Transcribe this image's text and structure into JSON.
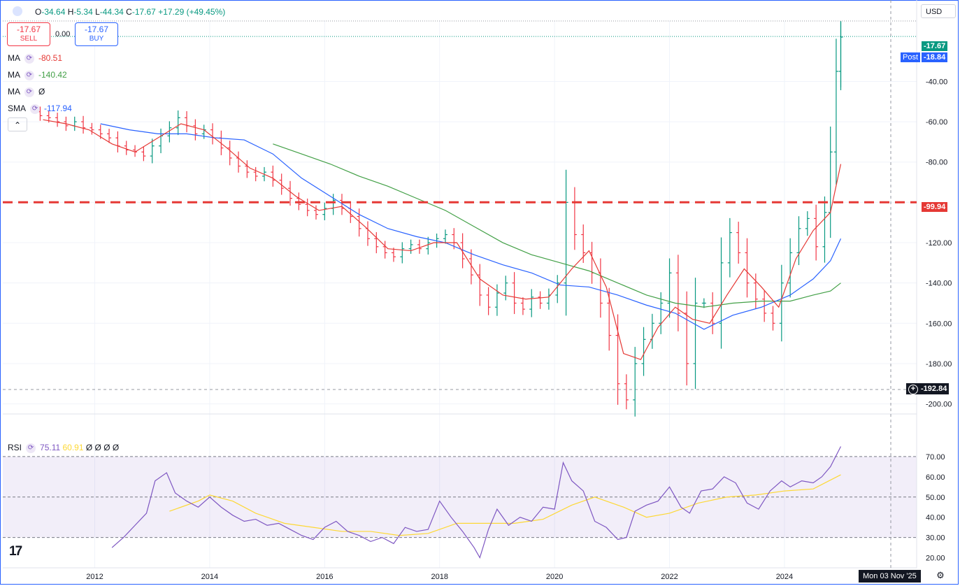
{
  "header": {
    "o_label": "O",
    "o": "-34.64",
    "h_label": "H",
    "h": "-5.34",
    "l_label": "L",
    "l": "-44.34",
    "c_label": "C",
    "c": "-17.67",
    "change": "+17.29 (+49.45%)",
    "currency": "USD"
  },
  "trade": {
    "sell_price": "-17.67",
    "sell_label": "SELL",
    "spread": "0.00",
    "buy_price": "-17.67",
    "buy_label": "BUY"
  },
  "indicators": [
    {
      "name": "MA",
      "value": "-80.51",
      "color": "#e53935"
    },
    {
      "name": "MA",
      "value": "-140.42",
      "color": "#43a047"
    },
    {
      "name": "MA",
      "value": "Ø",
      "color": "#131722"
    },
    {
      "name": "SMA",
      "value": "-117.94",
      "color": "#2962ff"
    }
  ],
  "rsi": {
    "name": "RSI",
    "value": "75.11",
    "ma_value": "60.91",
    "extra": "Ø Ø Ø Ø"
  },
  "price_tags": {
    "last": "-17.67",
    "post_label": "Post",
    "post": "-18.84",
    "level": "-99.94",
    "cursor": "-192.84"
  },
  "time_tag": "Mon 03 Nov '25",
  "logo_text": "17",
  "colors": {
    "up": "#089981",
    "down": "#f23645",
    "ma_fast": "#e53935",
    "ma_slow": "#43a047",
    "sma": "#2962ff",
    "rsi": "#7e57c2",
    "rsi_ma": "#fdd835",
    "level": "#e53935"
  },
  "chart_data": {
    "type": "bar",
    "x_ticks": [
      "2012",
      "2014",
      "2016",
      "2018",
      "2020",
      "2022",
      "2024"
    ],
    "y_ticks": [
      -40,
      -60,
      -80,
      -100,
      -120,
      -140,
      -160,
      -180,
      -200
    ],
    "y_tick_labels": [
      "-40.00",
      "-60.00",
      "-80.00",
      "-100.00",
      "-120.00",
      "-140.00",
      "-160.00",
      "-180.00",
      "-200.00"
    ],
    "ylim": [
      -205,
      -10
    ],
    "xlim": [
      2010.4,
      2026.3
    ],
    "horizontal_level": -99.94,
    "series_close": [
      [
        2011.05,
        -57
      ],
      [
        2011.2,
        -58
      ],
      [
        2011.35,
        -60
      ],
      [
        2011.5,
        -62
      ],
      [
        2011.65,
        -60
      ],
      [
        2011.8,
        -63
      ],
      [
        2011.95,
        -64
      ],
      [
        2012.1,
        -66
      ],
      [
        2012.25,
        -68
      ],
      [
        2012.4,
        -72
      ],
      [
        2012.55,
        -74
      ],
      [
        2012.7,
        -75
      ],
      [
        2012.85,
        -77
      ],
      [
        2013.0,
        -72
      ],
      [
        2013.15,
        -67
      ],
      [
        2013.3,
        -63
      ],
      [
        2013.45,
        -58
      ],
      [
        2013.6,
        -62
      ],
      [
        2013.75,
        -66
      ],
      [
        2013.9,
        -64
      ],
      [
        2014.05,
        -68
      ],
      [
        2014.2,
        -73
      ],
      [
        2014.35,
        -78
      ],
      [
        2014.5,
        -82
      ],
      [
        2014.65,
        -85
      ],
      [
        2014.8,
        -87
      ],
      [
        2014.95,
        -85
      ],
      [
        2015.1,
        -89
      ],
      [
        2015.25,
        -93
      ],
      [
        2015.4,
        -98
      ],
      [
        2015.55,
        -101
      ],
      [
        2015.7,
        -104
      ],
      [
        2015.85,
        -106
      ],
      [
        2016.0,
        -103
      ],
      [
        2016.15,
        -99
      ],
      [
        2016.3,
        -103
      ],
      [
        2016.45,
        -107
      ],
      [
        2016.6,
        -113
      ],
      [
        2016.75,
        -118
      ],
      [
        2016.9,
        -122
      ],
      [
        2017.05,
        -125
      ],
      [
        2017.2,
        -127
      ],
      [
        2017.35,
        -123
      ],
      [
        2017.5,
        -121
      ],
      [
        2017.65,
        -123
      ],
      [
        2017.8,
        -120
      ],
      [
        2017.95,
        -118
      ],
      [
        2018.1,
        -116
      ],
      [
        2018.25,
        -120
      ],
      [
        2018.4,
        -128
      ],
      [
        2018.55,
        -136
      ],
      [
        2018.7,
        -146
      ],
      [
        2018.85,
        -152
      ],
      [
        2019.0,
        -145
      ],
      [
        2019.15,
        -140
      ],
      [
        2019.3,
        -150
      ],
      [
        2019.45,
        -153
      ],
      [
        2019.6,
        -147
      ],
      [
        2019.75,
        -150
      ],
      [
        2019.9,
        -146
      ],
      [
        2020.05,
        -140
      ],
      [
        2020.2,
        -100
      ],
      [
        2020.35,
        -116
      ],
      [
        2020.5,
        -125
      ],
      [
        2020.65,
        -135
      ],
      [
        2020.8,
        -150
      ],
      [
        2020.95,
        -166
      ],
      [
        2021.1,
        -190
      ],
      [
        2021.25,
        -198
      ],
      [
        2021.4,
        -180
      ],
      [
        2021.55,
        -168
      ],
      [
        2021.7,
        -160
      ],
      [
        2021.85,
        -150
      ],
      [
        2022.0,
        -135
      ],
      [
        2022.15,
        -155
      ],
      [
        2022.3,
        -180
      ],
      [
        2022.45,
        -150
      ],
      [
        2022.6,
        -150
      ],
      [
        2022.75,
        -160
      ],
      [
        2022.9,
        -130
      ],
      [
        2023.05,
        -115
      ],
      [
        2023.2,
        -125
      ],
      [
        2023.35,
        -140
      ],
      [
        2023.5,
        -148
      ],
      [
        2023.65,
        -155
      ],
      [
        2023.8,
        -160
      ],
      [
        2023.95,
        -140
      ],
      [
        2024.1,
        -125
      ],
      [
        2024.25,
        -113
      ],
      [
        2024.4,
        -108
      ],
      [
        2024.55,
        -122
      ],
      [
        2024.7,
        -105
      ],
      [
        2024.8,
        -75
      ],
      [
        2024.9,
        -35
      ],
      [
        2024.98,
        -18
      ]
    ],
    "ma_fast": [
      [
        2011.1,
        -59
      ],
      [
        2011.5,
        -61
      ],
      [
        2011.9,
        -64
      ],
      [
        2012.3,
        -71
      ],
      [
        2012.7,
        -75
      ],
      [
        2013.1,
        -68
      ],
      [
        2013.5,
        -61
      ],
      [
        2013.9,
        -64
      ],
      [
        2014.3,
        -73
      ],
      [
        2014.7,
        -83
      ],
      [
        2015.1,
        -88
      ],
      [
        2015.5,
        -97
      ],
      [
        2015.9,
        -104
      ],
      [
        2016.3,
        -102
      ],
      [
        2016.7,
        -112
      ],
      [
        2017.1,
        -123
      ],
      [
        2017.5,
        -124
      ],
      [
        2017.9,
        -120
      ],
      [
        2018.3,
        -120
      ],
      [
        2018.7,
        -138
      ],
      [
        2019.1,
        -146
      ],
      [
        2019.5,
        -148
      ],
      [
        2019.9,
        -147
      ],
      [
        2020.3,
        -133
      ],
      [
        2020.6,
        -124
      ],
      [
        2020.9,
        -142
      ],
      [
        2021.2,
        -175
      ],
      [
        2021.5,
        -178
      ],
      [
        2021.8,
        -162
      ],
      [
        2022.1,
        -152
      ],
      [
        2022.4,
        -158
      ],
      [
        2022.7,
        -160
      ],
      [
        2023.0,
        -146
      ],
      [
        2023.3,
        -133
      ],
      [
        2023.6,
        -142
      ],
      [
        2023.9,
        -152
      ],
      [
        2024.2,
        -128
      ],
      [
        2024.5,
        -114
      ],
      [
        2024.8,
        -105
      ],
      [
        2024.98,
        -81
      ]
    ],
    "ma_slow": [
      [
        2015.1,
        -71
      ],
      [
        2015.6,
        -76
      ],
      [
        2016.1,
        -81
      ],
      [
        2016.6,
        -87
      ],
      [
        2017.1,
        -92
      ],
      [
        2017.6,
        -98
      ],
      [
        2018.1,
        -104
      ],
      [
        2018.6,
        -112
      ],
      [
        2019.1,
        -120
      ],
      [
        2019.6,
        -126
      ],
      [
        2020.1,
        -130
      ],
      [
        2020.6,
        -134
      ],
      [
        2021.1,
        -140
      ],
      [
        2021.6,
        -146
      ],
      [
        2022.1,
        -150
      ],
      [
        2022.6,
        -152
      ],
      [
        2023.1,
        -150
      ],
      [
        2023.6,
        -149
      ],
      [
        2024.1,
        -149
      ],
      [
        2024.5,
        -146
      ],
      [
        2024.8,
        -144
      ],
      [
        2024.98,
        -140
      ]
    ],
    "sma": [
      [
        2012.1,
        -61
      ],
      [
        2012.6,
        -64
      ],
      [
        2013.1,
        -66
      ],
      [
        2013.6,
        -66
      ],
      [
        2014.1,
        -68
      ],
      [
        2014.6,
        -69
      ],
      [
        2015.1,
        -76
      ],
      [
        2015.6,
        -88
      ],
      [
        2016.1,
        -97
      ],
      [
        2016.6,
        -106
      ],
      [
        2017.1,
        -113
      ],
      [
        2017.6,
        -117
      ],
      [
        2018.1,
        -120
      ],
      [
        2018.6,
        -126
      ],
      [
        2019.1,
        -131
      ],
      [
        2019.6,
        -135
      ],
      [
        2020.1,
        -141
      ],
      [
        2020.6,
        -142
      ],
      [
        2021.1,
        -146
      ],
      [
        2021.6,
        -151
      ],
      [
        2022.1,
        -155
      ],
      [
        2022.6,
        -163
      ],
      [
        2023.1,
        -156
      ],
      [
        2023.6,
        -152
      ],
      [
        2024.1,
        -146
      ],
      [
        2024.5,
        -138
      ],
      [
        2024.8,
        -129
      ],
      [
        2024.98,
        -118
      ]
    ],
    "rsi_ylim": [
      15,
      80
    ],
    "rsi_y_ticks": [
      "70.00",
      "60.00",
      "50.00",
      "40.00",
      "30.00",
      "20.00"
    ],
    "rsi_series": [
      [
        2012.3,
        25
      ],
      [
        2012.5,
        30
      ],
      [
        2012.7,
        36
      ],
      [
        2012.9,
        42
      ],
      [
        2013.05,
        58
      ],
      [
        2013.25,
        62
      ],
      [
        2013.4,
        52
      ],
      [
        2013.6,
        48
      ],
      [
        2013.8,
        45
      ],
      [
        2014.0,
        50
      ],
      [
        2014.2,
        45
      ],
      [
        2014.4,
        41
      ],
      [
        2014.6,
        38
      ],
      [
        2014.8,
        39
      ],
      [
        2015.0,
        36
      ],
      [
        2015.2,
        37
      ],
      [
        2015.4,
        34
      ],
      [
        2015.6,
        31
      ],
      [
        2015.8,
        29
      ],
      [
        2016.0,
        35
      ],
      [
        2016.2,
        38
      ],
      [
        2016.4,
        33
      ],
      [
        2016.6,
        31
      ],
      [
        2016.8,
        28
      ],
      [
        2017.0,
        30
      ],
      [
        2017.2,
        27
      ],
      [
        2017.4,
        35
      ],
      [
        2017.6,
        33
      ],
      [
        2017.8,
        34
      ],
      [
        2018.0,
        48
      ],
      [
        2018.2,
        40
      ],
      [
        2018.4,
        33
      ],
      [
        2018.6,
        25
      ],
      [
        2018.7,
        20
      ],
      [
        2018.85,
        34
      ],
      [
        2019.0,
        44
      ],
      [
        2019.2,
        36
      ],
      [
        2019.4,
        40
      ],
      [
        2019.6,
        38
      ],
      [
        2019.8,
        45
      ],
      [
        2020.0,
        44
      ],
      [
        2020.15,
        67
      ],
      [
        2020.3,
        58
      ],
      [
        2020.5,
        53
      ],
      [
        2020.7,
        38
      ],
      [
        2020.9,
        35
      ],
      [
        2021.1,
        29
      ],
      [
        2021.25,
        30
      ],
      [
        2021.4,
        43
      ],
      [
        2021.6,
        46
      ],
      [
        2021.8,
        48
      ],
      [
        2022.0,
        55
      ],
      [
        2022.2,
        45
      ],
      [
        2022.35,
        42
      ],
      [
        2022.55,
        53
      ],
      [
        2022.75,
        54
      ],
      [
        2022.95,
        60
      ],
      [
        2023.15,
        57
      ],
      [
        2023.35,
        47
      ],
      [
        2023.55,
        44
      ],
      [
        2023.75,
        53
      ],
      [
        2023.95,
        58
      ],
      [
        2024.1,
        55
      ],
      [
        2024.3,
        58
      ],
      [
        2024.5,
        57
      ],
      [
        2024.65,
        60
      ],
      [
        2024.8,
        65
      ],
      [
        2024.98,
        75
      ]
    ],
    "rsi_ma": [
      [
        2013.3,
        43
      ],
      [
        2013.8,
        48
      ],
      [
        2014.0,
        51
      ],
      [
        2014.4,
        48
      ],
      [
        2014.8,
        42
      ],
      [
        2015.3,
        37
      ],
      [
        2015.8,
        35
      ],
      [
        2016.3,
        33
      ],
      [
        2016.8,
        33
      ],
      [
        2017.3,
        31
      ],
      [
        2017.8,
        32
      ],
      [
        2018.3,
        37
      ],
      [
        2018.8,
        37
      ],
      [
        2019.3,
        37
      ],
      [
        2019.8,
        39
      ],
      [
        2020.3,
        46
      ],
      [
        2020.7,
        50
      ],
      [
        2021.2,
        45
      ],
      [
        2021.6,
        40
      ],
      [
        2022.0,
        42
      ],
      [
        2022.5,
        47
      ],
      [
        2023.0,
        50
      ],
      [
        2023.5,
        51
      ],
      [
        2024.0,
        53
      ],
      [
        2024.5,
        54
      ],
      [
        2024.98,
        61
      ]
    ],
    "rsi_bands": [
      70,
      50,
      30
    ]
  }
}
